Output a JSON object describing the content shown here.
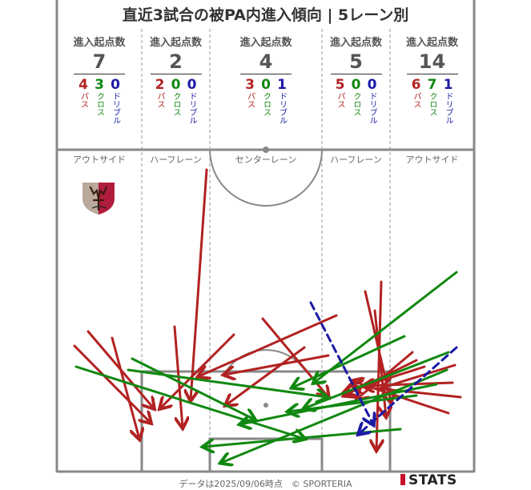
{
  "title": "直近3試合の被PA内進入傾向 | 5レーン別",
  "header_label": "進入起点数",
  "type_labels": {
    "pass": "パス",
    "cross": "クロス",
    "dribble": "ドリブル"
  },
  "colors": {
    "pass": "#b22222",
    "cross": "#118811",
    "dribble": "#1a1aa6",
    "line": "#888888"
  },
  "lanes": [
    {
      "name": "アウトサイド",
      "total": "7",
      "pass": "4",
      "cross": "3",
      "dribble": "0"
    },
    {
      "name": "ハーフレーン",
      "total": "2",
      "pass": "2",
      "cross": "0",
      "dribble": "0"
    },
    {
      "name": "センターレーン",
      "total": "4",
      "pass": "3",
      "cross": "0",
      "dribble": "1"
    },
    {
      "name": "ハーフレーン",
      "total": "5",
      "pass": "5",
      "cross": "0",
      "dribble": "0"
    },
    {
      "name": "アウトサイド",
      "total": "14",
      "pass": "6",
      "cross": "7",
      "dribble": "1"
    }
  ],
  "footer": "データは2025/09/06時点　© SPORTERIA",
  "brand": "STATS",
  "crest_icon": "kashima-antlers-crest-icon",
  "chart_data": {
    "type": "arrow-map",
    "categories": [
      "アウトサイド",
      "ハーフレーン",
      "センターレーン",
      "ハーフレーン",
      "アウトサイド"
    ],
    "series": [
      {
        "name": "パス",
        "values": [
          4,
          2,
          3,
          5,
          6
        ]
      },
      {
        "name": "クロス",
        "values": [
          3,
          0,
          0,
          0,
          7
        ]
      },
      {
        "name": "ドリブル",
        "values": [
          0,
          0,
          1,
          0,
          1
        ]
      }
    ],
    "totals": [
      7,
      2,
      4,
      5,
      14
    ],
    "arrows": [
      {
        "type": "pass",
        "from": [
          258,
          212
        ],
        "to": [
          238,
          500
        ]
      },
      {
        "type": "pass",
        "from": [
          110,
          414
        ],
        "to": [
          192,
          510
        ]
      },
      {
        "type": "pass",
        "from": [
          93,
          432
        ],
        "to": [
          188,
          528
        ]
      },
      {
        "type": "pass",
        "from": [
          140,
          422
        ],
        "to": [
          174,
          548
        ]
      },
      {
        "type": "pass",
        "from": [
          218,
          408
        ],
        "to": [
          228,
          534
        ]
      },
      {
        "type": "pass",
        "from": [
          292,
          418
        ],
        "to": [
          200,
          510
        ]
      },
      {
        "type": "pass",
        "from": [
          328,
          398
        ],
        "to": [
          410,
          496
        ]
      },
      {
        "type": "pass",
        "from": [
          420,
          394
        ],
        "to": [
          248,
          470
        ]
      },
      {
        "type": "pass",
        "from": [
          410,
          444
        ],
        "to": [
          280,
          468
        ]
      },
      {
        "type": "pass",
        "from": [
          380,
          434
        ],
        "to": [
          282,
          506
        ]
      },
      {
        "type": "pass",
        "from": [
          476,
          352
        ],
        "to": [
          470,
          562
        ]
      },
      {
        "type": "pass",
        "from": [
          456,
          364
        ],
        "to": [
          488,
          502
        ]
      },
      {
        "type": "pass",
        "from": [
          515,
          440
        ],
        "to": [
          446,
          498
        ]
      },
      {
        "type": "pass",
        "from": [
          560,
          516
        ],
        "to": [
          440,
          476
        ]
      },
      {
        "type": "pass",
        "from": [
          575,
          496
        ],
        "to": [
          440,
          482
        ]
      },
      {
        "type": "pass",
        "from": [
          565,
          478
        ],
        "to": [
          454,
          482
        ]
      },
      {
        "type": "pass",
        "from": [
          568,
          456
        ],
        "to": [
          478,
          484
        ]
      },
      {
        "type": "pass",
        "from": [
          468,
          388
        ],
        "to": [
          482,
          520
        ]
      },
      {
        "type": "pass",
        "from": [
          530,
          458
        ],
        "to": [
          430,
          490
        ]
      },
      {
        "type": "pass",
        "from": [
          520,
          450
        ],
        "to": [
          430,
          494
        ]
      },
      {
        "type": "cross",
        "from": [
          95,
          458
        ],
        "to": [
          380,
          548
        ]
      },
      {
        "type": "cross",
        "from": [
          160,
          462
        ],
        "to": [
          408,
          496
        ]
      },
      {
        "type": "cross",
        "from": [
          165,
          448
        ],
        "to": [
          318,
          524
        ]
      },
      {
        "type": "cross",
        "from": [
          570,
          340
        ],
        "to": [
          392,
          478
        ]
      },
      {
        "type": "cross",
        "from": [
          505,
          420
        ],
        "to": [
          365,
          484
        ]
      },
      {
        "type": "cross",
        "from": [
          560,
          440
        ],
        "to": [
          380,
          510
        ]
      },
      {
        "type": "cross",
        "from": [
          520,
          494
        ],
        "to": [
          360,
          514
        ]
      },
      {
        "type": "cross",
        "from": [
          500,
          536
        ],
        "to": [
          254,
          558
        ]
      },
      {
        "type": "cross",
        "from": [
          558,
          462
        ],
        "to": [
          276,
          578
        ]
      },
      {
        "type": "cross",
        "from": [
          545,
          480
        ],
        "to": [
          300,
          530
        ]
      },
      {
        "type": "dribble",
        "from": [
          388,
          378
        ],
        "to": [
          466,
          530
        ]
      },
      {
        "type": "dribble",
        "from": [
          570,
          434
        ],
        "to": [
          448,
          542
        ]
      }
    ]
  }
}
